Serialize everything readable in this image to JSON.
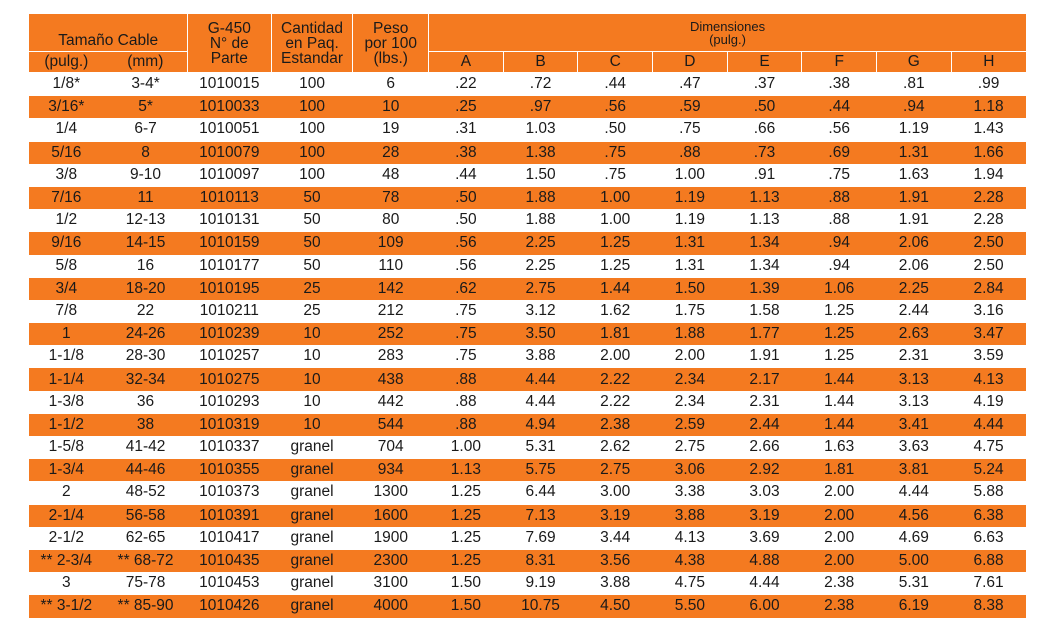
{
  "headers": {
    "tamano_cable": "Tamaño Cable",
    "pulg": "(pulg.)",
    "mm": "(mm)",
    "g450_line1": "G-450",
    "g450_line2": "N° de",
    "g450_line3": "Parte",
    "cantidad_line1": "Cantidad",
    "cantidad_line2": "en Paq.",
    "cantidad_line3": "Estandar",
    "peso_line1": "Peso",
    "peso_line2": "por 100",
    "peso_line3": "(lbs.)",
    "dimensiones_line1": "Dimensiones",
    "dimensiones_line2": "(pulg.)",
    "dims": [
      "A",
      "B",
      "C",
      "D",
      "E",
      "F",
      "G",
      "H"
    ]
  },
  "rows": [
    [
      "1/8*",
      "3-4*",
      "1010015",
      "100",
      "6",
      ".22",
      ".72",
      ".44",
      ".47",
      ".37",
      ".38",
      ".81",
      ".99"
    ],
    [
      "3/16*",
      "5*",
      "1010033",
      "100",
      "10",
      ".25",
      ".97",
      ".56",
      ".59",
      ".50",
      ".44",
      ".94",
      "1.18"
    ],
    [
      "1/4",
      "6-7",
      "1010051",
      "100",
      "19",
      ".31",
      "1.03",
      ".50",
      ".75",
      ".66",
      ".56",
      "1.19",
      "1.43"
    ],
    [
      "5/16",
      "8",
      "1010079",
      "100",
      "28",
      ".38",
      "1.38",
      ".75",
      ".88",
      ".73",
      ".69",
      "1.31",
      "1.66"
    ],
    [
      "3/8",
      "9-10",
      "1010097",
      "100",
      "48",
      ".44",
      "1.50",
      ".75",
      "1.00",
      ".91",
      ".75",
      "1.63",
      "1.94"
    ],
    [
      "7/16",
      "11",
      "1010113",
      "50",
      "78",
      ".50",
      "1.88",
      "1.00",
      "1.19",
      "1.13",
      ".88",
      "1.91",
      "2.28"
    ],
    [
      "1/2",
      "12-13",
      "1010131",
      "50",
      "80",
      ".50",
      "1.88",
      "1.00",
      "1.19",
      "1.13",
      ".88",
      "1.91",
      "2.28"
    ],
    [
      "9/16",
      "14-15",
      "1010159",
      "50",
      "109",
      ".56",
      "2.25",
      "1.25",
      "1.31",
      "1.34",
      ".94",
      "2.06",
      "2.50"
    ],
    [
      "5/8",
      "16",
      "1010177",
      "50",
      "110",
      ".56",
      "2.25",
      "1.25",
      "1.31",
      "1.34",
      ".94",
      "2.06",
      "2.50"
    ],
    [
      "3/4",
      "18-20",
      "1010195",
      "25",
      "142",
      ".62",
      "2.75",
      "1.44",
      "1.50",
      "1.39",
      "1.06",
      "2.25",
      "2.84"
    ],
    [
      "7/8",
      "22",
      "1010211",
      "25",
      "212",
      ".75",
      "3.12",
      "1.62",
      "1.75",
      "1.58",
      "1.25",
      "2.44",
      "3.16"
    ],
    [
      "1",
      "24-26",
      "1010239",
      "10",
      "252",
      ".75",
      "3.50",
      "1.81",
      "1.88",
      "1.77",
      "1.25",
      "2.63",
      "3.47"
    ],
    [
      "1-1/8",
      "28-30",
      "1010257",
      "10",
      "283",
      ".75",
      "3.88",
      "2.00",
      "2.00",
      "1.91",
      "1.25",
      "2.31",
      "3.59"
    ],
    [
      "1-1/4",
      "32-34",
      "1010275",
      "10",
      "438",
      ".88",
      "4.44",
      "2.22",
      "2.34",
      "2.17",
      "1.44",
      "3.13",
      "4.13"
    ],
    [
      "1-3/8",
      "36",
      "1010293",
      "10",
      "442",
      ".88",
      "4.44",
      "2.22",
      "2.34",
      "2.31",
      "1.44",
      "3.13",
      "4.19"
    ],
    [
      "1-1/2",
      "38",
      "1010319",
      "10",
      "544",
      ".88",
      "4.94",
      "2.38",
      "2.59",
      "2.44",
      "1.44",
      "3.41",
      "4.44"
    ],
    [
      "1-5/8",
      "41-42",
      "1010337",
      "granel",
      "704",
      "1.00",
      "5.31",
      "2.62",
      "2.75",
      "2.66",
      "1.63",
      "3.63",
      "4.75"
    ],
    [
      "1-3/4",
      "44-46",
      "1010355",
      "granel",
      "934",
      "1.13",
      "5.75",
      "2.75",
      "3.06",
      "2.92",
      "1.81",
      "3.81",
      "5.24"
    ],
    [
      "2",
      "48-52",
      "1010373",
      "granel",
      "1300",
      "1.25",
      "6.44",
      "3.00",
      "3.38",
      "3.03",
      "2.00",
      "4.44",
      "5.88"
    ],
    [
      "2-1/4",
      "56-58",
      "1010391",
      "granel",
      "1600",
      "1.25",
      "7.13",
      "3.19",
      "3.88",
      "3.19",
      "2.00",
      "4.56",
      "6.38"
    ],
    [
      "2-1/2",
      "62-65",
      "1010417",
      "granel",
      "1900",
      "1.25",
      "7.69",
      "3.44",
      "4.13",
      "3.69",
      "2.00",
      "4.69",
      "6.63"
    ],
    [
      "** 2-3/4",
      "** 68-72",
      "1010435",
      "granel",
      "2300",
      "1.25",
      "8.31",
      "3.56",
      "4.38",
      "4.88",
      "2.00",
      "5.00",
      "6.88"
    ],
    [
      "3",
      "75-78",
      "1010453",
      "granel",
      "3100",
      "1.50",
      "9.19",
      "3.88",
      "4.75",
      "4.44",
      "2.38",
      "5.31",
      "7.61"
    ],
    [
      "** 3-1/2",
      "** 85-90",
      "1010426",
      "granel",
      "4000",
      "1.50",
      "10.75",
      "4.50",
      "5.50",
      "6.00",
      "2.38",
      "6.19",
      "8.38"
    ]
  ],
  "colors": {
    "band": "#f47a20",
    "white": "#ffffff",
    "text": "#1a1a1a"
  }
}
